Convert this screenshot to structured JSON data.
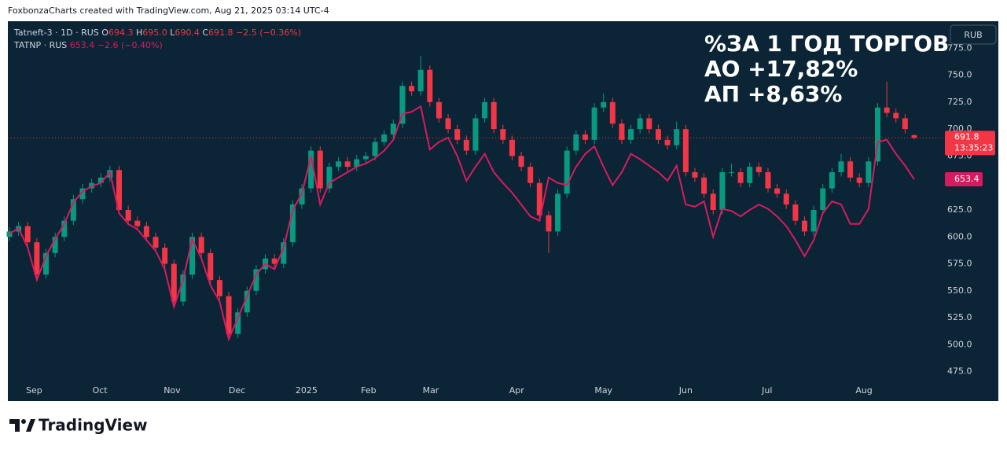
{
  "header": "FoxbonzaCharts created with TradingView.com, Aug 21, 2025 03:14 UTC-4",
  "footer": "TradingView",
  "chart_data": {
    "type": "candlestick",
    "currency": "RUB",
    "annotations": [
      "%ЗА 1 ГОД ТОРГОВ",
      "АО +17,82%",
      "АП +8,63%"
    ],
    "legend": {
      "main": "Tatneft-3 · 1D · RUS",
      "o": "O",
      "h": "H",
      "l": "L",
      "c": "C",
      "high_label": "695.0",
      "change": "−2.5 (−0.36%)",
      "second": "TATNP · RUS",
      "second_change": "−2.6 (−0.40%)"
    },
    "countdown": "13:35:23",
    "up_color": "#089981",
    "down_color": "#f23645",
    "xlim": [
      0,
      99
    ],
    "xticks": [
      {
        "value": 2.7,
        "label": "Sep"
      },
      {
        "value": 9.9,
        "label": "Oct"
      },
      {
        "value": 17.8,
        "label": "Nov"
      },
      {
        "value": 24.9,
        "label": "Dec"
      },
      {
        "value": 32.5,
        "label": "2025"
      },
      {
        "value": 39.3,
        "label": "Feb"
      },
      {
        "value": 46.1,
        "label": "Mar"
      },
      {
        "value": 55.5,
        "label": "Apr"
      },
      {
        "value": 65,
        "label": "May"
      },
      {
        "value": 74,
        "label": "Jun"
      },
      {
        "value": 82.9,
        "label": "Jul"
      },
      {
        "value": 93.5,
        "label": "Aug"
      }
    ],
    "ylim": [
      466,
      800
    ],
    "yticks": [
      {
        "value": 475,
        "label": "475.0"
      },
      {
        "value": 500,
        "label": "500.0"
      },
      {
        "value": 525,
        "label": "525.0"
      },
      {
        "value": 550,
        "label": "550.0"
      },
      {
        "value": 575,
        "label": "575.0"
      },
      {
        "value": 600,
        "label": "600.0"
      },
      {
        "value": 625,
        "label": "625.0"
      },
      {
        "value": 650,
        "label": "650.0"
      },
      {
        "value": 675,
        "label": "675.0"
      },
      {
        "value": 700,
        "label": "700.0"
      },
      {
        "value": 725,
        "label": "725.0"
      },
      {
        "value": 750,
        "label": "750.0"
      },
      {
        "value": 775,
        "label": "775.0"
      }
    ],
    "series": [
      {
        "name": "Tatneft-3",
        "color": "#f23645",
        "open": [
          600,
          605,
          610,
          595,
          565,
          585,
          600,
          615,
          635,
          645,
          650,
          655,
          662,
          625,
          615,
          610,
          600,
          590,
          575,
          540,
          565,
          600,
          585,
          560,
          545,
          510,
          530,
          550,
          570,
          580,
          575,
          595,
          630,
          645,
          680,
          645,
          665,
          670,
          665,
          672,
          675,
          688,
          695,
          705,
          740,
          735,
          755,
          725,
          710,
          700,
          690,
          680,
          710,
          725,
          700,
          690,
          675,
          665,
          650,
          620,
          605,
          640,
          680,
          695,
          690,
          720,
          725,
          705,
          690,
          700,
          710,
          700,
          690,
          685,
          700,
          660,
          655,
          640,
          625,
          660,
          660,
          650,
          665,
          660,
          645,
          640,
          630,
          615,
          605,
          625,
          645,
          660,
          670,
          655,
          650,
          670,
          720,
          715,
          710,
          694.3
        ],
        "high": [
          609,
          614,
          614,
          599,
          589,
          604,
          619,
          639,
          649,
          654,
          659,
          666,
          666,
          629,
          619,
          614,
          604,
          594,
          579,
          569,
          604,
          604,
          589,
          564,
          549,
          534,
          554,
          574,
          584,
          584,
          599,
          634,
          649,
          684,
          684,
          669,
          674,
          674,
          676,
          679,
          692,
          699,
          709,
          744,
          744,
          768,
          759,
          729,
          714,
          704,
          694,
          714,
          729,
          729,
          704,
          694,
          679,
          669,
          654,
          624,
          644,
          684,
          699,
          699,
          724,
          733,
          729,
          709,
          704,
          714,
          714,
          704,
          694,
          707,
          704,
          664,
          659,
          644,
          664,
          668,
          664,
          669,
          669,
          664,
          649,
          644,
          634,
          619,
          629,
          649,
          664,
          677,
          674,
          659,
          674,
          724,
          744,
          719,
          714,
          695
        ],
        "low": [
          596,
          601,
          591,
          561,
          561,
          581,
          596,
          611,
          631,
          641,
          646,
          651,
          621,
          611,
          606,
          596,
          586,
          571,
          536,
          536,
          561,
          581,
          556,
          541,
          506,
          506,
          526,
          546,
          566,
          571,
          571,
          591,
          626,
          641,
          641,
          641,
          661,
          661,
          661,
          668,
          671,
          684,
          691,
          701,
          731,
          731,
          721,
          706,
          696,
          686,
          676,
          676,
          706,
          696,
          686,
          671,
          661,
          646,
          616,
          585,
          601,
          636,
          676,
          686,
          686,
          716,
          701,
          686,
          686,
          696,
          696,
          686,
          681,
          681,
          656,
          651,
          636,
          621,
          621,
          656,
          646,
          646,
          656,
          641,
          636,
          626,
          611,
          601,
          601,
          621,
          641,
          656,
          651,
          646,
          646,
          666,
          711,
          706,
          696,
          690.4
        ],
        "close": [
          605,
          610,
          595,
          565,
          585,
          600,
          615,
          635,
          645,
          650,
          655,
          662,
          625,
          615,
          610,
          600,
          590,
          575,
          540,
          565,
          600,
          585,
          560,
          545,
          510,
          530,
          550,
          570,
          580,
          575,
          595,
          630,
          645,
          680,
          645,
          665,
          670,
          665,
          672,
          675,
          688,
          695,
          705,
          740,
          735,
          755,
          725,
          710,
          700,
          690,
          680,
          710,
          725,
          700,
          690,
          675,
          665,
          650,
          620,
          605,
          640,
          680,
          695,
          690,
          720,
          725,
          705,
          690,
          700,
          710,
          700,
          690,
          685,
          700,
          660,
          655,
          640,
          625,
          660,
          660,
          650,
          665,
          660,
          645,
          640,
          630,
          615,
          605,
          625,
          645,
          660,
          670,
          655,
          650,
          670,
          720,
          715,
          710,
          700,
          691.8
        ]
      },
      {
        "name": "TATNP",
        "color": "#d81b60",
        "values": [
          603,
          608,
          590,
          560,
          582,
          598,
          612,
          632,
          642,
          647,
          650,
          660,
          622,
          612,
          607,
          597,
          587,
          570,
          535,
          560,
          598,
          580,
          555,
          540,
          505,
          525,
          545,
          565,
          575,
          570,
          590,
          625,
          640,
          675,
          630,
          650,
          655,
          660,
          665,
          668,
          673,
          680,
          690,
          714,
          716,
          721,
          681,
          688,
          692,
          675,
          652,
          665,
          677,
          660,
          650,
          641,
          630,
          619,
          615,
          655,
          650,
          648,
          665,
          677,
          684,
          665,
          648,
          660,
          677,
          672,
          666,
          660,
          652,
          666,
          630,
          628,
          633,
          600,
          626,
          624,
          619,
          625,
          630,
          626,
          619,
          610,
          597,
          582,
          597,
          622,
          633,
          630,
          612,
          612,
          626,
          688,
          690,
          677,
          666,
          653.4
        ]
      }
    ]
  }
}
